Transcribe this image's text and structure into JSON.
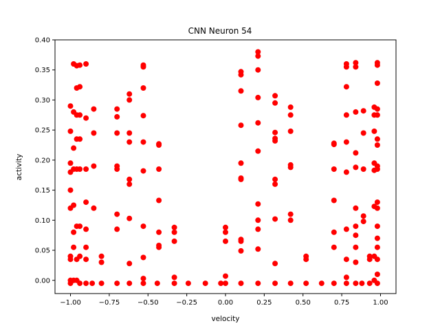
{
  "chart_data": {
    "type": "scatter",
    "title": "CNN Neuron 54",
    "xlabel": "velocity",
    "ylabel": "activity",
    "xlim": [
      -1.1,
      1.1
    ],
    "ylim": [
      -0.022,
      0.4
    ],
    "xticks": [
      -1.0,
      -0.75,
      -0.5,
      -0.25,
      0.0,
      0.25,
      0.5,
      0.75,
      1.0
    ],
    "xtick_labels": [
      "−1.00",
      "−0.75",
      "−0.50",
      "−0.25",
      "0.00",
      "0.25",
      "0.50",
      "0.75",
      "1.00"
    ],
    "yticks": [
      0.0,
      0.05,
      0.1,
      0.15,
      0.2,
      0.25,
      0.3,
      0.35,
      0.4
    ],
    "ytick_labels": [
      "0.00",
      "0.05",
      "0.10",
      "0.15",
      "0.20",
      "0.25",
      "0.30",
      "0.35",
      "0.40"
    ],
    "marker_color": "#ff0000",
    "grid": false,
    "legend": "none",
    "series": [
      {
        "points": [
          [
            -1.0,
            -0.005
          ],
          [
            -1.0,
            0.0
          ],
          [
            -1.0,
            0.035
          ],
          [
            -1.0,
            0.04
          ],
          [
            -1.0,
            0.12
          ],
          [
            -1.0,
            0.15
          ],
          [
            -1.0,
            0.18
          ],
          [
            -1.0,
            0.195
          ],
          [
            -1.0,
            0.248
          ],
          [
            -1.0,
            0.29
          ],
          [
            -0.98,
            0.0
          ],
          [
            -0.98,
            0.055
          ],
          [
            -0.98,
            0.08
          ],
          [
            -0.98,
            0.125
          ],
          [
            -0.98,
            0.185
          ],
          [
            -0.98,
            0.22
          ],
          [
            -0.98,
            0.28
          ],
          [
            -0.98,
            0.36
          ],
          [
            -0.96,
            0.0
          ],
          [
            -0.96,
            0.035
          ],
          [
            -0.96,
            0.09
          ],
          [
            -0.96,
            0.185
          ],
          [
            -0.96,
            0.235
          ],
          [
            -0.96,
            0.275
          ],
          [
            -0.96,
            0.32
          ],
          [
            -0.96,
            0.357
          ],
          [
            -0.94,
            -0.005
          ],
          [
            -0.94,
            0.04
          ],
          [
            -0.94,
            0.09
          ],
          [
            -0.94,
            0.185
          ],
          [
            -0.94,
            0.235
          ],
          [
            -0.94,
            0.275
          ],
          [
            -0.94,
            0.322
          ],
          [
            -0.94,
            0.358
          ],
          [
            -0.9,
            -0.005
          ],
          [
            -0.9,
            0.035
          ],
          [
            -0.9,
            0.055
          ],
          [
            -0.9,
            0.085
          ],
          [
            -0.9,
            0.13
          ],
          [
            -0.9,
            0.185
          ],
          [
            -0.9,
            0.27
          ],
          [
            -0.9,
            0.36
          ],
          [
            -0.86,
            -0.005
          ],
          [
            -0.85,
            0.12
          ],
          [
            -0.85,
            0.19
          ],
          [
            -0.85,
            0.245
          ],
          [
            -0.85,
            0.285
          ],
          [
            -0.8,
            -0.005
          ],
          [
            -0.8,
            0.03
          ],
          [
            -0.8,
            0.04
          ],
          [
            -0.7,
            -0.005
          ],
          [
            -0.7,
            0.085
          ],
          [
            -0.7,
            0.11
          ],
          [
            -0.7,
            0.185
          ],
          [
            -0.7,
            0.19
          ],
          [
            -0.7,
            0.245
          ],
          [
            -0.7,
            0.272
          ],
          [
            -0.7,
            0.285
          ],
          [
            -0.62,
            -0.005
          ],
          [
            -0.62,
            0.028
          ],
          [
            -0.62,
            0.103
          ],
          [
            -0.62,
            0.16
          ],
          [
            -0.62,
            0.168
          ],
          [
            -0.62,
            0.23
          ],
          [
            -0.62,
            0.245
          ],
          [
            -0.62,
            0.3
          ],
          [
            -0.62,
            0.31
          ],
          [
            -0.53,
            -0.005
          ],
          [
            -0.53,
            0.003
          ],
          [
            -0.53,
            0.038
          ],
          [
            -0.53,
            0.09
          ],
          [
            -0.53,
            0.182
          ],
          [
            -0.53,
            0.23
          ],
          [
            -0.53,
            0.274
          ],
          [
            -0.53,
            0.32
          ],
          [
            -0.53,
            0.355
          ],
          [
            -0.53,
            0.358
          ],
          [
            -0.44,
            -0.005
          ],
          [
            -0.43,
            0.055
          ],
          [
            -0.43,
            0.058
          ],
          [
            -0.43,
            0.08
          ],
          [
            -0.43,
            0.133
          ],
          [
            -0.43,
            0.185
          ],
          [
            -0.43,
            0.225
          ],
          [
            -0.43,
            0.227
          ],
          [
            -0.33,
            -0.005
          ],
          [
            -0.33,
            0.005
          ],
          [
            -0.33,
            0.065
          ],
          [
            -0.33,
            0.08
          ],
          [
            -0.33,
            0.088
          ],
          [
            -0.24,
            -0.005
          ],
          [
            -0.13,
            -0.005
          ],
          [
            -0.03,
            -0.005
          ],
          [
            0.0,
            -0.005
          ],
          [
            0.0,
            0.007
          ],
          [
            0.0,
            0.065
          ],
          [
            0.0,
            0.08
          ],
          [
            0.0,
            0.088
          ],
          [
            0.1,
            -0.005
          ],
          [
            0.1,
            0.049
          ],
          [
            0.1,
            0.065
          ],
          [
            0.1,
            0.068
          ],
          [
            0.1,
            0.168
          ],
          [
            0.1,
            0.17
          ],
          [
            0.1,
            0.195
          ],
          [
            0.1,
            0.258
          ],
          [
            0.1,
            0.315
          ],
          [
            0.1,
            0.342
          ],
          [
            0.1,
            0.347
          ],
          [
            0.21,
            -0.005
          ],
          [
            0.21,
            0.052
          ],
          [
            0.21,
            0.085
          ],
          [
            0.21,
            0.1
          ],
          [
            0.21,
            0.127
          ],
          [
            0.21,
            0.215
          ],
          [
            0.21,
            0.262
          ],
          [
            0.21,
            0.304
          ],
          [
            0.21,
            0.35
          ],
          [
            0.21,
            0.373
          ],
          [
            0.21,
            0.38
          ],
          [
            0.32,
            -0.005
          ],
          [
            0.32,
            0.028
          ],
          [
            0.32,
            0.102
          ],
          [
            0.32,
            0.16
          ],
          [
            0.32,
            0.168
          ],
          [
            0.32,
            0.232
          ],
          [
            0.32,
            0.236
          ],
          [
            0.32,
            0.246
          ],
          [
            0.32,
            0.295
          ],
          [
            0.32,
            0.307
          ],
          [
            0.42,
            -0.005
          ],
          [
            0.42,
            0.1
          ],
          [
            0.42,
            0.11
          ],
          [
            0.42,
            0.188
          ],
          [
            0.42,
            0.192
          ],
          [
            0.42,
            0.248
          ],
          [
            0.42,
            0.275
          ],
          [
            0.42,
            0.288
          ],
          [
            0.52,
            -0.005
          ],
          [
            0.52,
            0.035
          ],
          [
            0.52,
            0.04
          ],
          [
            0.62,
            -0.005
          ],
          [
            0.7,
            -0.005
          ],
          [
            0.7,
            0.055
          ],
          [
            0.7,
            0.08
          ],
          [
            0.7,
            0.133
          ],
          [
            0.7,
            0.185
          ],
          [
            0.7,
            0.226
          ],
          [
            0.7,
            0.228
          ],
          [
            0.78,
            -0.005
          ],
          [
            0.78,
            0.005
          ],
          [
            0.78,
            0.035
          ],
          [
            0.78,
            0.085
          ],
          [
            0.78,
            0.18
          ],
          [
            0.78,
            0.23
          ],
          [
            0.78,
            0.275
          ],
          [
            0.78,
            0.322
          ],
          [
            0.78,
            0.355
          ],
          [
            0.78,
            0.36
          ],
          [
            0.84,
            -0.005
          ],
          [
            0.84,
            0.03
          ],
          [
            0.84,
            0.055
          ],
          [
            0.84,
            0.075
          ],
          [
            0.84,
            0.09
          ],
          [
            0.84,
            0.12
          ],
          [
            0.84,
            0.188
          ],
          [
            0.84,
            0.212
          ],
          [
            0.84,
            0.28
          ],
          [
            0.84,
            0.355
          ],
          [
            0.84,
            0.362
          ],
          [
            0.88,
            -0.005
          ],
          [
            0.89,
            0.098
          ],
          [
            0.89,
            0.107
          ],
          [
            0.89,
            0.185
          ],
          [
            0.89,
            0.245
          ],
          [
            0.89,
            0.282
          ],
          [
            0.93,
            -0.005
          ],
          [
            0.93,
            0.035
          ],
          [
            0.93,
            0.04
          ],
          [
            0.96,
            0.0
          ],
          [
            0.96,
            0.04
          ],
          [
            0.96,
            0.123
          ],
          [
            0.96,
            0.183
          ],
          [
            0.96,
            0.195
          ],
          [
            0.96,
            0.248
          ],
          [
            0.96,
            0.275
          ],
          [
            0.96,
            0.288
          ],
          [
            0.98,
            -0.005
          ],
          [
            0.98,
            0.01
          ],
          [
            0.98,
            0.035
          ],
          [
            0.98,
            0.055
          ],
          [
            0.98,
            0.07
          ],
          [
            0.98,
            0.09
          ],
          [
            0.98,
            0.12
          ],
          [
            0.98,
            0.13
          ],
          [
            0.98,
            0.185
          ],
          [
            0.98,
            0.19
          ],
          [
            0.98,
            0.225
          ],
          [
            0.98,
            0.235
          ],
          [
            0.98,
            0.275
          ],
          [
            0.98,
            0.285
          ],
          [
            0.98,
            0.328
          ],
          [
            0.98,
            0.358
          ],
          [
            0.98,
            0.362
          ]
        ]
      }
    ]
  }
}
